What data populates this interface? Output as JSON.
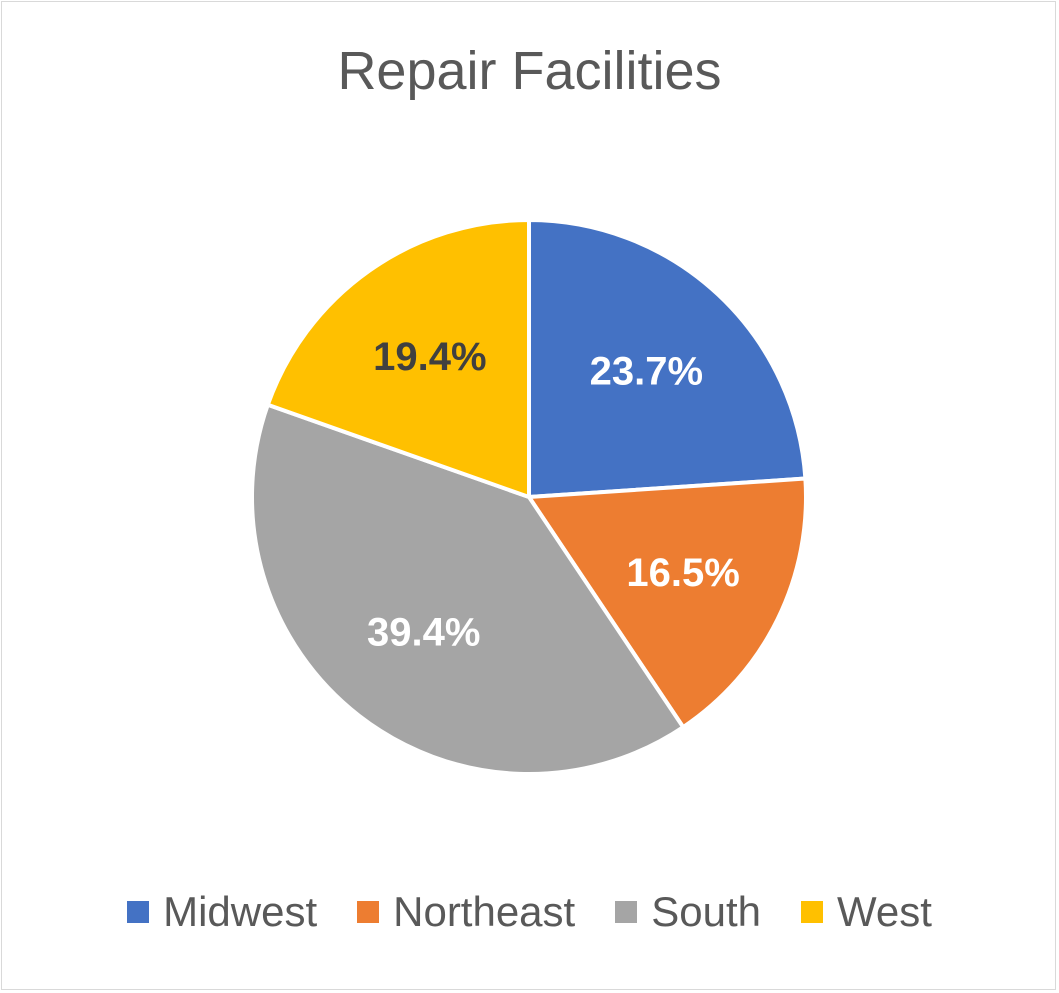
{
  "chart_data": {
    "type": "pie",
    "title": "Repair Facilities",
    "categories": [
      "Midwest",
      "Northeast",
      "South",
      "West"
    ],
    "values": [
      23.7,
      16.5,
      39.4,
      19.4
    ],
    "labels": [
      "23.7%",
      "16.5%",
      "39.4%",
      "19.4%"
    ],
    "colors": [
      "#4472c4",
      "#ed7d31",
      "#a5a5a5",
      "#ffc000"
    ],
    "label_colors": [
      "#ffffff",
      "#ffffff",
      "#ffffff",
      "#404040"
    ],
    "legend_position": "bottom",
    "start_angle_deg": 0,
    "direction": "clockwise"
  }
}
